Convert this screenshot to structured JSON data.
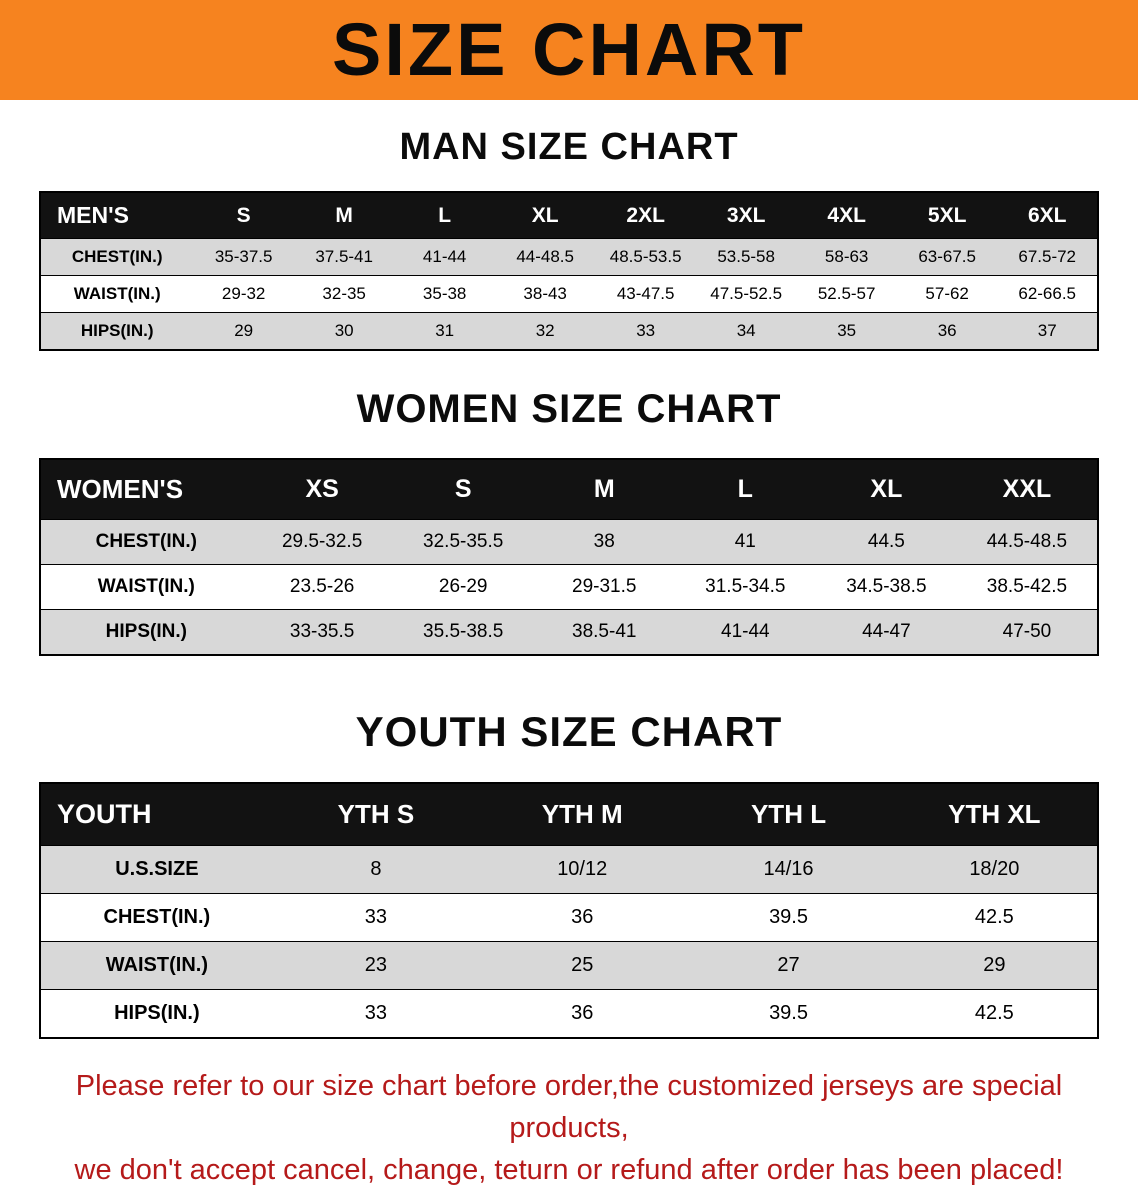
{
  "banner": {
    "title": "SIZE CHART"
  },
  "colors": {
    "banner_bg": "#F6831F",
    "table_header_bg": "#121212",
    "row_stripe": "#D8D8D8",
    "disclaimer_text": "#B51A1A"
  },
  "sections": [
    {
      "heading": "MAN SIZE CHART",
      "table": {
        "header": [
          "MEN'S",
          "S",
          "M",
          "L",
          "XL",
          "2XL",
          "3XL",
          "4XL",
          "5XL",
          "6XL"
        ],
        "rows": [
          [
            "CHEST(IN.)",
            "35-37.5",
            "37.5-41",
            "41-44",
            "44-48.5",
            "48.5-53.5",
            "53.5-58",
            "58-63",
            "63-67.5",
            "67.5-72"
          ],
          [
            "WAIST(IN.)",
            "29-32",
            "32-35",
            "35-38",
            "38-43",
            "43-47.5",
            "47.5-52.5",
            "52.5-57",
            "57-62",
            "62-66.5"
          ],
          [
            "HIPS(IN.)",
            "29",
            "30",
            "31",
            "32",
            "33",
            "34",
            "35",
            "36",
            "37"
          ]
        ]
      }
    },
    {
      "heading": "WOMEN SIZE CHART",
      "table": {
        "header": [
          "WOMEN'S",
          "XS",
          "S",
          "M",
          "L",
          "XL",
          "XXL"
        ],
        "rows": [
          [
            "CHEST(IN.)",
            "29.5-32.5",
            "32.5-35.5",
            "38",
            "41",
            "44.5",
            "44.5-48.5"
          ],
          [
            "WAIST(IN.)",
            "23.5-26",
            "26-29",
            "29-31.5",
            "31.5-34.5",
            "34.5-38.5",
            "38.5-42.5"
          ],
          [
            "HIPS(IN.)",
            "33-35.5",
            "35.5-38.5",
            "38.5-41",
            "41-44",
            "44-47",
            "47-50"
          ]
        ]
      }
    },
    {
      "heading": "YOUTH SIZE CHART",
      "table": {
        "header": [
          "YOUTH",
          "YTH S",
          "YTH M",
          "YTH L",
          "YTH XL"
        ],
        "rows": [
          [
            "U.S.SIZE",
            "8",
            "10/12",
            "14/16",
            "18/20"
          ],
          [
            "CHEST(IN.)",
            "33",
            "36",
            "39.5",
            "42.5"
          ],
          [
            "WAIST(IN.)",
            "23",
            "25",
            "27",
            "29"
          ],
          [
            "HIPS(IN.)",
            "33",
            "36",
            "39.5",
            "42.5"
          ]
        ]
      }
    }
  ],
  "disclaimer": {
    "line1": "Please refer to our size chart before order,the customized jerseys are special products,",
    "line2": "we don't accept cancel, change, teturn or refund after order has been placed!"
  }
}
